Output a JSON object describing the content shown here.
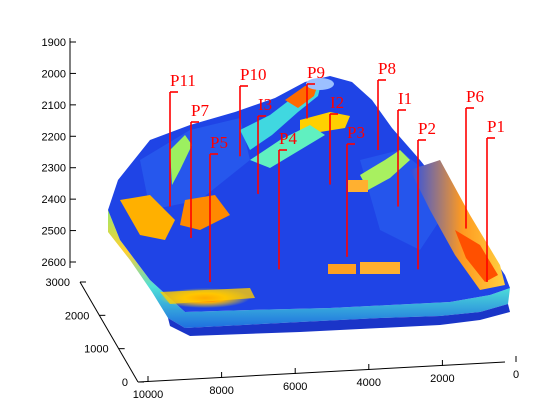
{
  "chart_data": {
    "type": "scatter",
    "subtype": "3d-reservoir-surface-with-wells",
    "title": "",
    "xlabel": "",
    "ylabel": "",
    "zlabel": "",
    "axes": {
      "z": {
        "ticks": [
          1900,
          2000,
          2100,
          2200,
          2300,
          2400,
          2500,
          2600
        ],
        "direction": "depth-increasing-downward"
      },
      "y": {
        "ticks": [
          0,
          1000,
          2000,
          3000
        ]
      },
      "x": {
        "ticks": [
          10000,
          8000,
          6000,
          4000,
          2000,
          0
        ]
      }
    },
    "wells": [
      {
        "name": "P11",
        "top_depth": 2090,
        "bottom_depth": 2360
      },
      {
        "name": "P10",
        "top_depth": 2070,
        "bottom_depth": 2200
      },
      {
        "name": "P9",
        "top_depth": 2040,
        "bottom_depth": 2080
      },
      {
        "name": "P8",
        "top_depth": 2100,
        "bottom_depth": 2180
      },
      {
        "name": "P7",
        "top_depth": 2180,
        "bottom_depth": 2460
      },
      {
        "name": "I3",
        "top_depth": 2180,
        "bottom_depth": 2320
      },
      {
        "name": "I2",
        "top_depth": 2150,
        "bottom_depth": 2290
      },
      {
        "name": "I1",
        "top_depth": 2200,
        "bottom_depth": 2360
      },
      {
        "name": "P6",
        "top_depth": 2150,
        "bottom_depth": 2430
      },
      {
        "name": "P5",
        "top_depth": 2240,
        "bottom_depth": 2600
      },
      {
        "name": "P4",
        "top_depth": 2240,
        "bottom_depth": 2560
      },
      {
        "name": "P3",
        "top_depth": 2240,
        "bottom_depth": 2520
      },
      {
        "name": "P2",
        "top_depth": 2240,
        "bottom_depth": 2560
      },
      {
        "name": "P1",
        "top_depth": 2240,
        "bottom_depth": 2600
      }
    ],
    "colors": {
      "well": "#ff0000",
      "axis": "#000000",
      "surface_low": "#1e3fe0",
      "surface_high": "#ff3000"
    }
  }
}
